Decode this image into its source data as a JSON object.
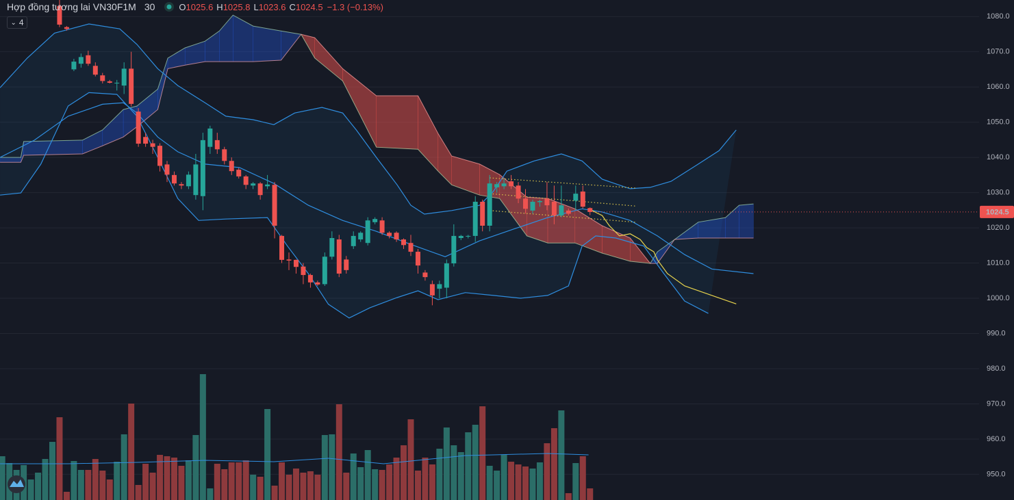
{
  "header": {
    "symbol": "Hợp đồng tương lai VN30F1M",
    "interval": "30",
    "o": "O",
    "h": "H",
    "l": "L",
    "c": "C",
    "change": "−1.3 (−0.13%)",
    "indicators_count": "4"
  },
  "chart_data": {
    "type": "candlestick",
    "ylim": [
      942.7,
      1084.7
    ],
    "yticks": [
      {
        "value": 950,
        "label": "950.0"
      },
      {
        "value": 960,
        "label": "960.0"
      },
      {
        "value": 970,
        "label": "970.0"
      },
      {
        "value": 980,
        "label": "980.0"
      },
      {
        "value": 990,
        "label": "990.0"
      },
      {
        "value": 1000,
        "label": "1000.0"
      },
      {
        "value": 1010,
        "label": "1010.0"
      },
      {
        "value": 1020,
        "label": "1020.0"
      },
      {
        "value": 1030,
        "label": "1030.0"
      },
      {
        "value": 1040,
        "label": "1040.0"
      },
      {
        "value": 1050,
        "label": "1050.0"
      },
      {
        "value": 1060,
        "label": "1060.0"
      },
      {
        "value": 1070,
        "label": "1070.0"
      },
      {
        "value": 1080,
        "label": "1080.0"
      }
    ],
    "grid": true,
    "up_color": "#26a69a",
    "down_color": "#ef5350",
    "open": [
      null,
      null,
      null,
      null,
      null,
      null,
      null,
      null,
      1083,
      1077,
      1065,
      1066.6,
      1069,
      1066,
      1063.3,
      1061.6,
      1061,
      1060.4,
      1065.2,
      1053,
      1045.8,
      1044,
      1043.3,
      1038,
      1035,
      1032.4,
      1031.8,
      1029.3,
      1029,
      1043,
      1044.9,
      1042.3,
      1039,
      1036.5,
      1034.6,
      1032,
      1032.6,
      1031.8,
      1032.2,
      1017.7,
      1011,
      1010.9,
      1009,
      1006.6,
      1004.5,
      1004,
      1011.8,
      1016.7,
      1011,
      1014.8,
      1016.7,
      1015.7,
      1021.6,
      1022.1,
      1018.6,
      1018.6,
      1016.7,
      1015.7,
      1013.2,
      1007.3,
      1004,
      1002.7,
      1003,
      1009.9,
      1017.1,
      1017.5,
      1017.7,
      1027.4,
      1020.6,
      1031.5,
      1031.8,
      1033.2,
      1032,
      1028.3,
      1024.9,
      1027.3,
      1028.3,
      1027.4,
      1023.5,
      1024.9,
      1027.7,
      1030.3,
      1025.6
    ],
    "high": [
      null,
      null,
      null,
      null,
      null,
      null,
      null,
      null,
      1085,
      1077.3,
      1068,
      1069.5,
      1070.3,
      1067,
      1064,
      1062,
      1062,
      1067,
      1070,
      1054,
      1047,
      1045,
      1044,
      1039,
      1036,
      1033,
      1036,
      1041,
      1047,
      1049,
      1047,
      1043,
      1040,
      1037,
      1035,
      1033,
      1033,
      1035,
      1033,
      1018,
      1013,
      1011,
      1010,
      1007,
      1005,
      1013,
      1019,
      1018,
      1012,
      1019,
      1019,
      1023,
      1023,
      1023,
      1019,
      1019,
      1017,
      1018,
      1014,
      1008,
      1005,
      1005,
      1011,
      1021,
      1018,
      1018,
      1029,
      1028,
      1035,
      1033,
      1034,
      1035,
      1033,
      1031,
      1028,
      1028,
      1033,
      1032,
      1032,
      1025.5,
      1032,
      1032,
      1025.8
    ],
    "low": [
      null,
      null,
      null,
      null,
      null,
      null,
      null,
      null,
      1077,
      1076,
      1064.5,
      1065.5,
      1066,
      1063,
      1061,
      1061,
      1059,
      1058,
      1054.5,
      1043,
      1043,
      1041,
      1036,
      1033,
      1032,
      1031,
      1031,
      1028,
      1025,
      1041,
      1041,
      1038,
      1035,
      1034,
      1031,
      1031,
      1028,
      1031,
      1017,
      1010,
      1008,
      1007,
      1004,
      1003,
      1003.5,
      1003.5,
      1011,
      1006,
      1007,
      1014,
      1016,
      1015,
      1021,
      1018,
      1017,
      1016,
      1014,
      1012,
      1007,
      1005,
      998,
      1000,
      1000,
      1009,
      1016.5,
      1017,
      1016,
      1019,
      1019,
      1030,
      1031,
      1031,
      1027,
      1024,
      1024,
      1026,
      1025,
      1021,
      1023,
      1023.5,
      1025,
      1025.5,
      1023.6
    ],
    "close": [
      null,
      null,
      null,
      null,
      null,
      null,
      null,
      null,
      1077.7,
      1076.5,
      1067.2,
      1068.5,
      1066.6,
      1063.5,
      1061.7,
      1061.2,
      1061.2,
      1065.2,
      1055.2,
      1043.9,
      1043.9,
      1043,
      1037.6,
      1035.1,
      1032.6,
      1032,
      1035.1,
      1038,
      1044.9,
      1048.2,
      1042.3,
      1039,
      1036.1,
      1034.6,
      1032.2,
      1032.6,
      1029.3,
      1032.3,
      1020.6,
      1010.9,
      1010.7,
      1008.9,
      1006.6,
      1004.5,
      1003.9,
      1011.8,
      1017.1,
      1007,
      1008,
      1017.7,
      1018.6,
      1022.1,
      1022.5,
      1018.6,
      1017.7,
      1016.7,
      1015.1,
      1013.2,
      1009.3,
      1006,
      1000.8,
      1004,
      1009.9,
      1017.7,
      1017.7,
      1017.7,
      1027.4,
      1020.6,
      1032.6,
      1032.4,
      1032.6,
      1031.8,
      1028.3,
      1025.4,
      1027.4,
      1027.6,
      1026.4,
      1023.5,
      1026.4,
      1024,
      1029.7,
      1026,
      1024.5
    ],
    "volume": {
      "values": [
        64,
        54,
        44,
        51,
        30,
        40,
        60,
        85,
        121,
        12,
        57,
        44,
        44,
        60,
        43,
        30,
        56,
        96,
        141,
        22,
        53,
        40,
        66,
        64,
        62,
        50,
        58,
        95,
        184,
        17,
        53,
        45,
        55,
        55,
        58,
        37,
        34,
        133,
        21,
        55,
        37,
        46,
        40,
        42,
        37,
        95,
        96,
        140,
        40,
        68,
        48,
        73,
        45,
        44,
        52,
        62,
        80,
        118,
        43,
        62,
        52,
        75,
        106,
        80,
        70,
        99,
        110,
        137,
        50,
        43,
        66,
        56,
        52,
        49,
        46,
        55,
        83,
        105,
        131,
        10,
        54,
        64,
        17
      ],
      "up_color": "#2b6e68",
      "down_color": "#8e3a3d",
      "ma": {
        "color": "#2f8ee0",
        "x": [
          -0.3,
          9.2,
          18.8,
          28.3,
          37.9,
          45.5,
          53.2,
          58.9,
          64.6,
          68.5,
          76.1,
          81.8
        ],
        "values": [
          53,
          53,
          55,
          58,
          56,
          61,
          53,
          59,
          65,
          66,
          68,
          66
        ]
      }
    },
    "bollinger": {
      "color": "#2f8ee0",
      "upper": {
        "x": [
          -0.3,
          3.5,
          7.3,
          12.1,
          16.4,
          18.8,
          21.7,
          24.5,
          28.3,
          31.2,
          35.0,
          37.9,
          40.8,
          44.6,
          47.5,
          49.4,
          52.2,
          55.1,
          57.0,
          58.9,
          62.7,
          66.6,
          68.5,
          70.4,
          74.2,
          78.0,
          80.9,
          83.7,
          87.6,
          90.4,
          93.3,
          97.1,
          100,
          102.4
        ],
        "values": [
          1059.8,
          1068.2,
          1075.3,
          1077.9,
          1076.5,
          1072.1,
          1065.2,
          1060.4,
          1055.5,
          1051.7,
          1050.7,
          1049.3,
          1052.6,
          1054.2,
          1052.6,
          1047.8,
          1040,
          1032.2,
          1026.4,
          1023.9,
          1024.9,
          1026.4,
          1030.3,
          1036.1,
          1039,
          1041,
          1039,
          1033.8,
          1031.1,
          1031.5,
          1033.2,
          1038.1,
          1041.9,
          1047.8
        ]
      },
      "basis": {
        "x": [
          -0.3,
          4.5,
          9.2,
          14.0,
          16.9,
          18.8,
          21.7,
          24.5,
          28.3,
          33.1,
          37.9,
          42.7,
          47.5,
          52.2,
          57.0,
          61.8,
          66.6,
          71.3,
          76.1,
          80.9,
          83.7,
          87.6,
          91.4,
          95.2,
          99.0,
          104.8
        ],
        "values": [
          1040,
          1044.9,
          1051.7,
          1055.1,
          1055.5,
          1052.6,
          1045.8,
          1041.6,
          1038.1,
          1037.1,
          1032.6,
          1026.4,
          1022.1,
          1019,
          1015.3,
          1011.8,
          1016.3,
          1019.6,
          1022.9,
          1025.4,
          1024.5,
          1022.1,
          1017.7,
          1012.4,
          1008.3,
          1007
        ]
      },
      "lower": {
        "x": [
          -0.3,
          2.6,
          5.4,
          9.2,
          12.1,
          16.0,
          18.8,
          21.7,
          24.5,
          27.4,
          31.2,
          37.0,
          39.8,
          42.7,
          45.5,
          48.4,
          51.3,
          55.1,
          58.0,
          60.8,
          64.6,
          68.5,
          72.3,
          76.1,
          79.0,
          80.9,
          82.8,
          85.6,
          89.5,
          92.3,
          95.2,
          98.5
        ],
        "values": [
          1029.3,
          1029.9,
          1038.1,
          1054.6,
          1058.4,
          1057.9,
          1051.7,
          1040,
          1028.3,
          1022.1,
          1022.5,
          1022.9,
          1014.8,
          1007,
          998.3,
          994.4,
          997.3,
          1000.2,
          1002.1,
          999.6,
          1001.6,
          1000.8,
          1000,
          1000.8,
          1003.5,
          1014.8,
          1017.7,
          1017.1,
          1014.8,
          1007,
          999.2,
          995.7
        ]
      }
    },
    "ichimoku": {
      "up_color": "rgba(41,98,255,0.32)",
      "down_color": "rgba(239,83,80,0.5)",
      "line_a": "#a5d6a7",
      "line_b": "#f7a1a1",
      "x": [
        -0.3,
        2.6,
        3.0,
        11.2,
        14.0,
        16.9,
        18.8,
        21.7,
        23.1,
        25.5,
        28.3,
        30.3,
        32.2,
        35.0,
        38.9,
        41.7,
        43.6,
        47.5,
        52.2,
        58.0,
        60.8,
        62.7,
        66.6,
        69.4,
        73.2,
        76.1,
        79.9,
        83.7,
        87.6,
        90.4,
        91.4,
        93.8,
        97.1,
        100.9,
        102.8,
        104.8
      ],
      "span_a": [
        1040,
        1040,
        1044.5,
        1044.9,
        1047.8,
        1053.6,
        1054.6,
        1059.4,
        1068.2,
        1071.1,
        1073.0,
        1075.9,
        1080.4,
        1077.3,
        1075.9,
        1074.95,
        1068.2,
        1061.7,
        1042.9,
        1042.3,
        1036.1,
        1032.2,
        1029.3,
        1028.3,
        1017.7,
        1015.7,
        1015.7,
        1012.8,
        1010.5,
        1009.9,
        1013.2,
        1016.7,
        1021.6,
        1022.9,
        1026.4,
        1026.8
      ],
      "span_b": [
        1038.6,
        1038.6,
        1040.6,
        1041.0,
        1043.3,
        1045.8,
        1048.7,
        1053.6,
        1065.2,
        1066.2,
        1067.2,
        1067.2,
        1067.2,
        1067.2,
        1067.6,
        1074.95,
        1074.0,
        1065.2,
        1057.5,
        1057.5,
        1046.8,
        1040.4,
        1038.1,
        1035.1,
        1028.7,
        1028.3,
        1025.4,
        1020.6,
        1017.1,
        1009.9,
        1009.9,
        1016.7,
        1017.1,
        1017.1,
        1017.1,
        1017.1
      ]
    },
    "lagging": {
      "color": "#e8d44d",
      "x": [
        81.8,
        83.7,
        84.7,
        86.1,
        87.6,
        89.0,
        89.9,
        90.9,
        91.4,
        92.8,
        95.2,
        99.0,
        102.4
      ],
      "values": [
        1025.4,
        1023.5,
        1020.6,
        1017.7,
        1018.3,
        1016.7,
        1014.4,
        1013.2,
        1010.9,
        1007.0,
        1003.5,
        1000.8,
        998.4
      ]
    },
    "trendlines": {
      "color": "#d9c24a",
      "lines": [
        {
          "x": [
            68.0,
            88.3
          ],
          "values": [
            1034.2,
            1031.3
          ]
        },
        {
          "x": [
            68.0,
            88.3
          ],
          "values": [
            1029.7,
            1026.2
          ]
        },
        {
          "x": [
            68.0,
            88.3
          ],
          "values": [
            1024.9,
            1021.6
          ]
        }
      ]
    }
  }
}
